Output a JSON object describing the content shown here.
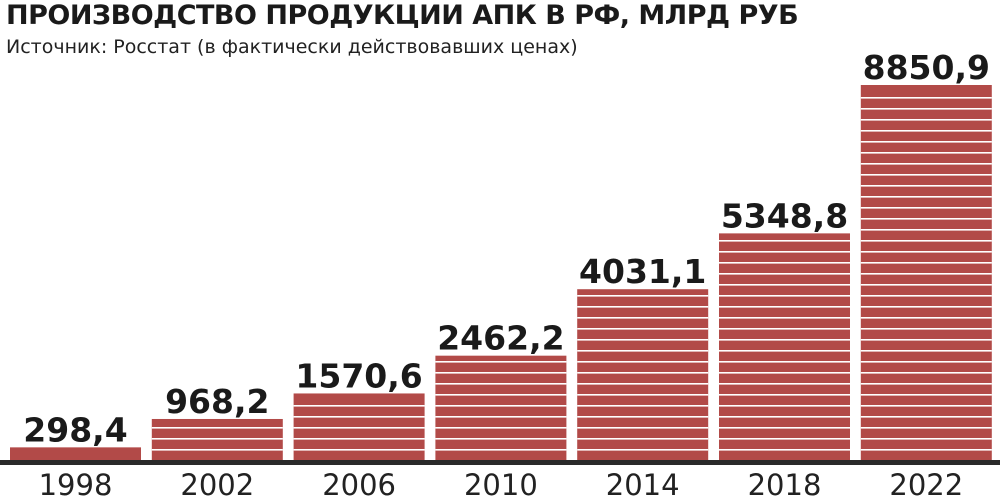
{
  "chart_data": {
    "type": "bar",
    "title": "ПРОИЗВОДСТВО ПРОДУКЦИИ АПК В РФ, МЛРД РУБ",
    "subtitle": "Источник: Росстат (в фактически действовавших ценах)",
    "categories": [
      "1998",
      "2002",
      "2006",
      "2010",
      "2014",
      "2018",
      "2022"
    ],
    "values": [
      298.4,
      968.2,
      1570.6,
      2462.2,
      4031.1,
      5348.8,
      8850.9
    ],
    "value_labels": [
      "298,4",
      "968,2",
      "1570,6",
      "2462,2",
      "4031,1",
      "5348,8",
      "8850,9"
    ],
    "xlabel": "",
    "ylabel": "",
    "ylim": [
      0,
      8850.9
    ],
    "grid": false,
    "colors": {
      "bar": "#b24a48",
      "stripe": "#ffffff",
      "baseline": "#2a2a2a"
    }
  }
}
